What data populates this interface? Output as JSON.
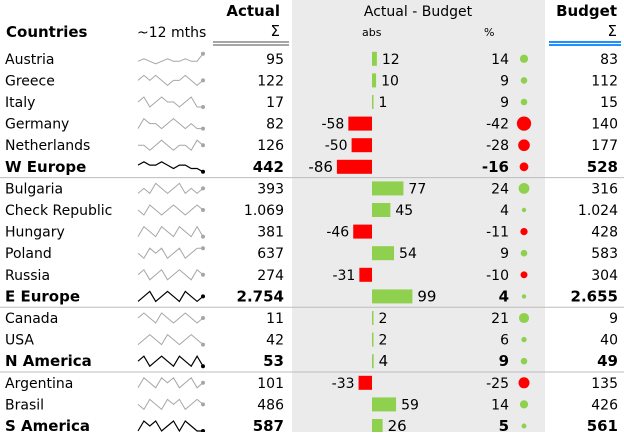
{
  "chart_data": {
    "type": "table",
    "headers": {
      "countries": "Countries",
      "trend": "~12 mths",
      "actual": "Actual",
      "actual_sum": "Σ",
      "variance": "Actual - Budget",
      "abs": "abs",
      "pct": "%",
      "budget": "Budget",
      "budget_sum": "Σ"
    },
    "rows": [
      {
        "name": "Austria",
        "actual": "95",
        "abs": 12,
        "pct": 14,
        "budget": "83",
        "bold": false,
        "spark": [
          5,
          6,
          5,
          4,
          5,
          6,
          5,
          5,
          6,
          5,
          5,
          8
        ]
      },
      {
        "name": "Greece",
        "actual": "122",
        "abs": 10,
        "pct": 9,
        "budget": "112",
        "bold": false,
        "spark": [
          5,
          6,
          5,
          6,
          5,
          4,
          5,
          5,
          6,
          5,
          4,
          5
        ]
      },
      {
        "name": "Italy",
        "actual": "17",
        "abs": 1,
        "pct": 9,
        "budget": "15",
        "bold": false,
        "spark": [
          5,
          6,
          4,
          5,
          6,
          5,
          5,
          4,
          5,
          6,
          4,
          4
        ]
      },
      {
        "name": "Germany",
        "actual": "82",
        "abs": -58,
        "pct": -42,
        "budget": "140",
        "bold": false,
        "spark": [
          4,
          6,
          5,
          5,
          4,
          5,
          6,
          5,
          4,
          5,
          4,
          4
        ]
      },
      {
        "name": "Netherlands",
        "actual": "126",
        "abs": -50,
        "pct": -28,
        "budget": "177",
        "bold": false,
        "spark": [
          5,
          5,
          4,
          5,
          6,
          5,
          4,
          5,
          5,
          4,
          6,
          5
        ]
      },
      {
        "name": "W Europe",
        "actual": "442",
        "abs": -86,
        "pct": -16,
        "budget": "528",
        "bold": true,
        "spark": [
          5,
          6,
          5,
          5,
          6,
          5,
          4,
          5,
          5,
          4,
          4,
          3
        ]
      },
      {
        "name": "Bulgaria",
        "actual": "393",
        "abs": 77,
        "pct": 24,
        "budget": "316",
        "bold": false,
        "spark": [
          4,
          5,
          4,
          6,
          5,
          4,
          5,
          6,
          4,
          5,
          4,
          5
        ]
      },
      {
        "name": "Check Republic",
        "actual": "1.069",
        "abs": 45,
        "pct": 4,
        "budget": "1.024",
        "bold": false,
        "spark": [
          5,
          4,
          6,
          5,
          4,
          5,
          6,
          5,
          4,
          5,
          6,
          5
        ]
      },
      {
        "name": "Hungary",
        "actual": "381",
        "abs": -46,
        "pct": -11,
        "budget": "428",
        "bold": false,
        "spark": [
          4,
          6,
          5,
          4,
          6,
          5,
          4,
          6,
          5,
          4,
          6,
          4
        ]
      },
      {
        "name": "Poland",
        "actual": "637",
        "abs": 54,
        "pct": 9,
        "budget": "583",
        "bold": false,
        "spark": [
          5,
          4,
          6,
          5,
          6,
          4,
          5,
          6,
          4,
          5,
          6,
          6
        ]
      },
      {
        "name": "Russia",
        "actual": "274",
        "abs": -31,
        "pct": -10,
        "budget": "304",
        "bold": false,
        "spark": [
          5,
          6,
          4,
          5,
          6,
          4,
          5,
          6,
          5,
          4,
          6,
          5
        ]
      },
      {
        "name": "E Europe",
        "actual": "2.754",
        "abs": 99,
        "pct": 4,
        "budget": "2.655",
        "bold": true,
        "spark": [
          4,
          5,
          6,
          4,
          5,
          6,
          5,
          4,
          6,
          5,
          4,
          5
        ]
      },
      {
        "name": "Canada",
        "actual": "11",
        "abs": 2,
        "pct": 21,
        "budget": "9",
        "bold": false,
        "spark": [
          5,
          6,
          5,
          4,
          6,
          5,
          4,
          5,
          6,
          5,
          4,
          5
        ]
      },
      {
        "name": "USA",
        "actual": "42",
        "abs": 2,
        "pct": 6,
        "budget": "40",
        "bold": false,
        "spark": [
          4,
          5,
          6,
          5,
          4,
          6,
          5,
          4,
          5,
          6,
          5,
          4
        ]
      },
      {
        "name": "N America",
        "actual": "53",
        "abs": 4,
        "pct": 9,
        "budget": "49",
        "bold": true,
        "spark": [
          5,
          6,
          4,
          5,
          6,
          5,
          4,
          6,
          5,
          4,
          6,
          4
        ]
      },
      {
        "name": "Argentina",
        "actual": "101",
        "abs": -33,
        "pct": -25,
        "budget": "135",
        "bold": false,
        "spark": [
          4,
          6,
          5,
          4,
          6,
          5,
          6,
          4,
          5,
          6,
          4,
          5
        ]
      },
      {
        "name": "Brasil",
        "actual": "486",
        "abs": 59,
        "pct": 14,
        "budget": "426",
        "bold": false,
        "spark": [
          5,
          4,
          6,
          5,
          4,
          6,
          5,
          6,
          4,
          5,
          6,
          5
        ]
      },
      {
        "name": "S America",
        "actual": "587",
        "abs": 26,
        "pct": 5,
        "budget": "561",
        "bold": true,
        "spark": [
          4,
          6,
          5,
          6,
          4,
          5,
          6,
          4,
          6,
          5,
          4,
          4
        ]
      }
    ],
    "colors": {
      "positive": "#8fd14f",
      "negative": "#ff0000",
      "panel": "#ebebeb",
      "actual_rule": "#a6a6a6",
      "budget_rule": "#1e90ff"
    }
  }
}
